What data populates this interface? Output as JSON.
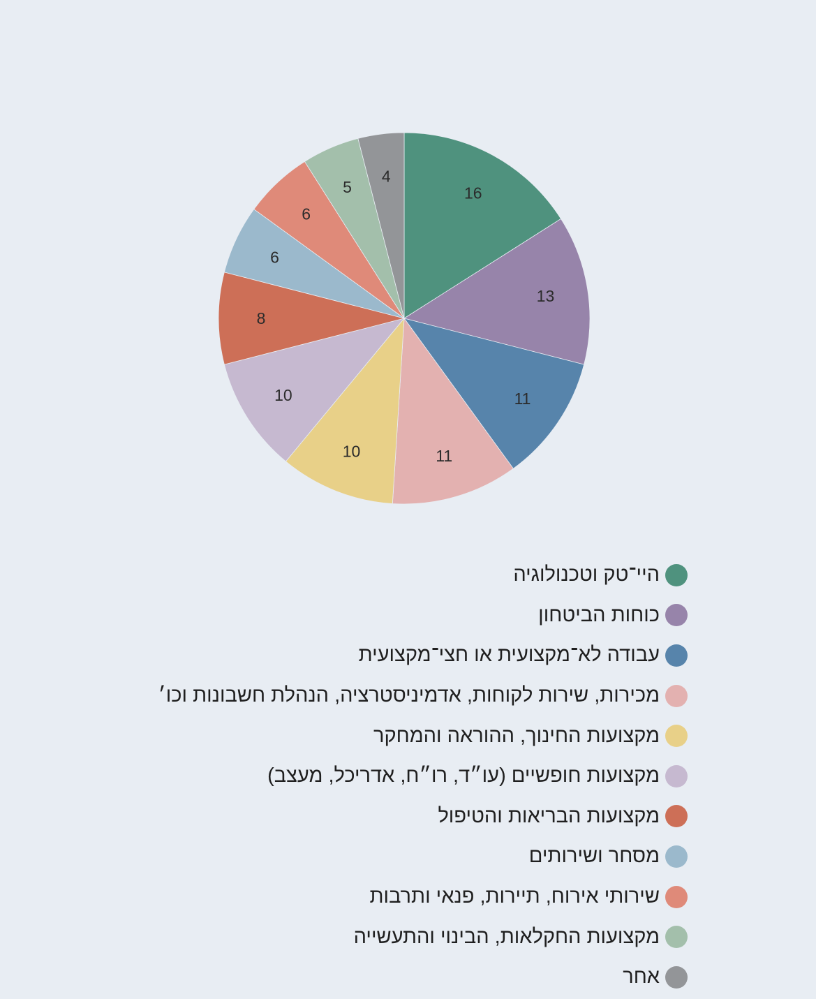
{
  "chart_data": {
    "type": "pie",
    "title": "",
    "legend_position": "bottom",
    "slices": [
      {
        "label": "היי־טק וטכנולוגיה",
        "value": 16,
        "color": "#4f927e"
      },
      {
        "label": "כוחות הביטחון",
        "value": 13,
        "color": "#9784aa"
      },
      {
        "label": "עבודה לא־מקצועית או חצי־מקצועית",
        "value": 11,
        "color": "#5784ab"
      },
      {
        "label": "מכירות, שירות לקוחות, אדמיניסטרציה, הנהלת חשבונות וכו׳",
        "value": 11,
        "color": "#e3b1b0"
      },
      {
        "label": "מקצועות החינוך, ההוראה והמחקר",
        "value": 10,
        "color": "#e8d088"
      },
      {
        "label": "מקצועות חופשיים (עו״ד, רו״ח, אדריכל, מעצב)",
        "value": 10,
        "color": "#c6b9d0"
      },
      {
        "label": "מקצועות הבריאות והטיפול",
        "value": 8,
        "color": "#cd6f57"
      },
      {
        "label": "מסחר ושירותים",
        "value": 6,
        "color": "#9bb9cc"
      },
      {
        "label": "שירותי אירוח, תיירות, פנאי ותרבות",
        "value": 6,
        "color": "#df8a79"
      },
      {
        "label": "מקצועות החקלאות, הבינוי והתעשייה",
        "value": 5,
        "color": "#a3bfab"
      },
      {
        "label": "אחר",
        "value": 4,
        "color": "#939598"
      }
    ]
  }
}
